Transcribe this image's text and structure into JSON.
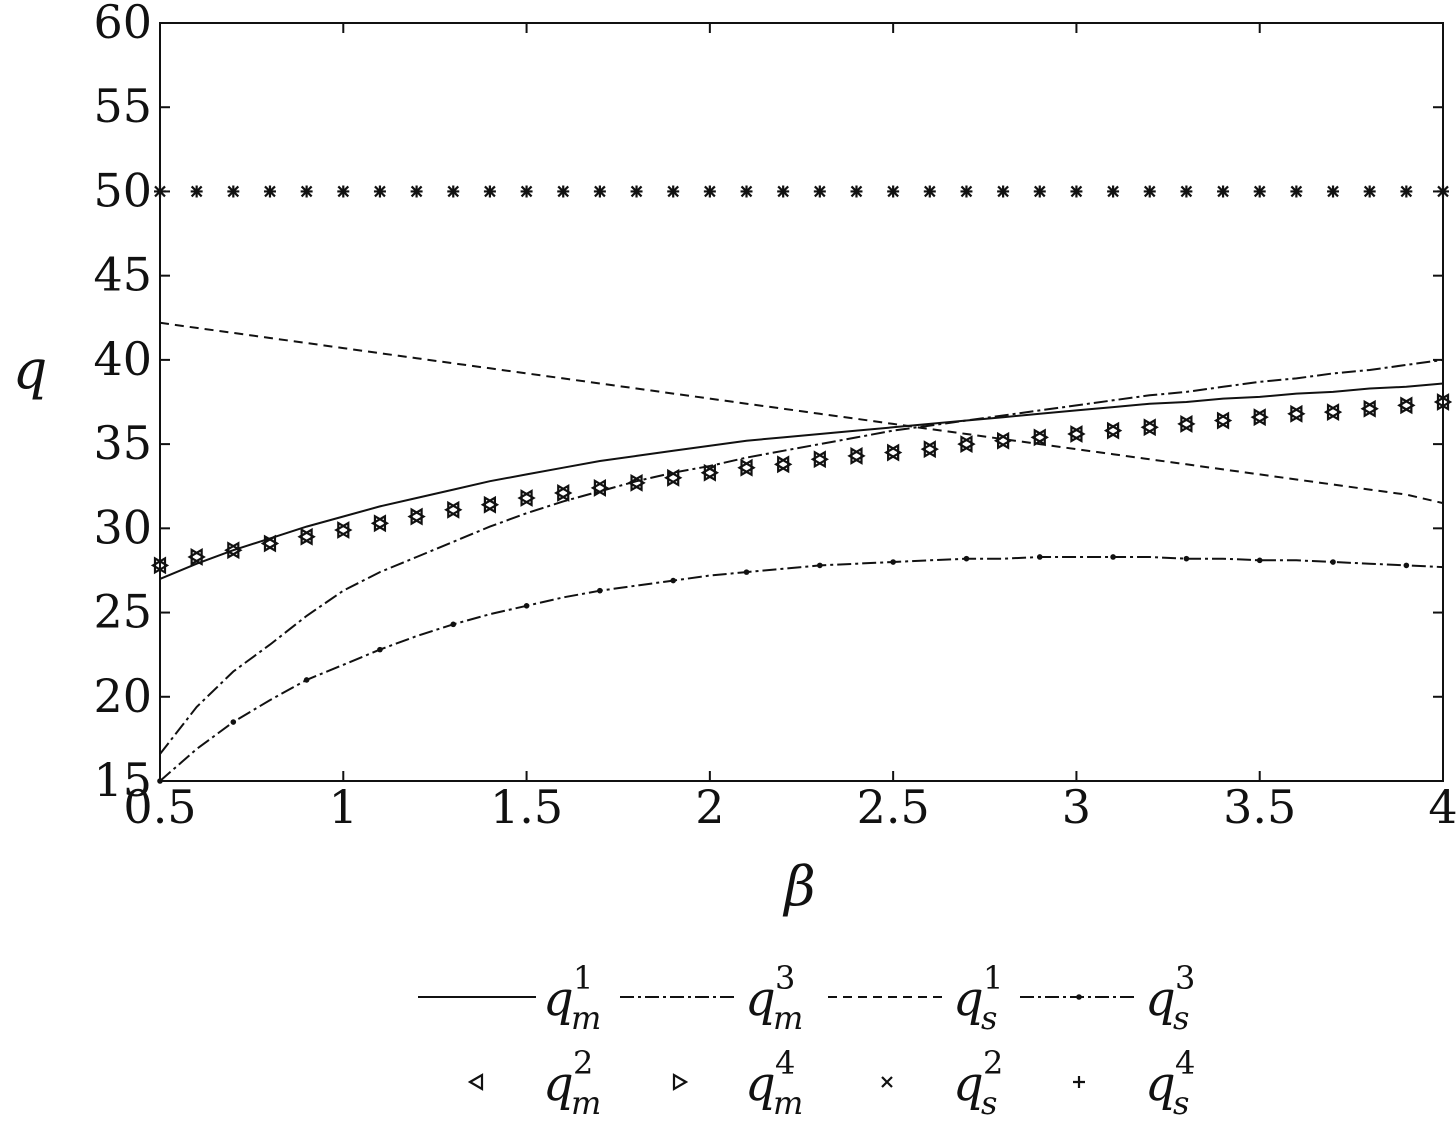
{
  "chart_data": {
    "type": "line",
    "xlabel": "β",
    "ylabel": "q",
    "xlim": [
      0.5,
      4
    ],
    "ylim": [
      15,
      60
    ],
    "xticks": [
      "0.5",
      "1",
      "1.5",
      "2",
      "2.5",
      "3",
      "3.5",
      "4"
    ],
    "yticks": [
      "15",
      "20",
      "25",
      "30",
      "35",
      "40",
      "45",
      "50",
      "55",
      "60"
    ],
    "grid": false,
    "legend_position": "bottom",
    "x": [
      0.5,
      0.6,
      0.7,
      0.8,
      0.9,
      1.0,
      1.1,
      1.2,
      1.3,
      1.4,
      1.5,
      1.6,
      1.7,
      1.8,
      1.9,
      2.0,
      2.1,
      2.2,
      2.3,
      2.4,
      2.5,
      2.6,
      2.7,
      2.8,
      2.9,
      3.0,
      3.1,
      3.2,
      3.3,
      3.4,
      3.5,
      3.6,
      3.7,
      3.8,
      3.9,
      4.0
    ],
    "series": [
      {
        "id": "qm1",
        "sym": "q",
        "sub": "m",
        "sup": "1",
        "style": "solid",
        "marker": "none",
        "values": [
          27.0,
          27.9,
          28.7,
          29.4,
          30.1,
          30.7,
          31.3,
          31.8,
          32.3,
          32.8,
          33.2,
          33.6,
          34.0,
          34.3,
          34.6,
          34.9,
          35.2,
          35.4,
          35.6,
          35.8,
          36.0,
          36.2,
          36.4,
          36.6,
          36.8,
          37.0,
          37.2,
          37.4,
          37.5,
          37.7,
          37.8,
          38.0,
          38.1,
          38.3,
          38.4,
          38.6
        ]
      },
      {
        "id": "qm3",
        "sym": "q",
        "sub": "m",
        "sup": "3",
        "style": "dashdot",
        "marker": "none",
        "values": [
          16.6,
          19.4,
          21.5,
          23.1,
          24.8,
          26.3,
          27.4,
          28.3,
          29.2,
          30.1,
          30.9,
          31.6,
          32.2,
          32.8,
          33.3,
          33.7,
          34.2,
          34.6,
          35.0,
          35.4,
          35.8,
          36.1,
          36.4,
          36.7,
          37.0,
          37.3,
          37.6,
          37.9,
          38.1,
          38.4,
          38.7,
          38.9,
          39.2,
          39.4,
          39.7,
          40.0
        ]
      },
      {
        "id": "qs1",
        "sym": "q",
        "sub": "s",
        "sup": "1",
        "style": "dashed",
        "marker": "none",
        "values": [
          42.2,
          41.9,
          41.6,
          41.3,
          41.0,
          40.7,
          40.4,
          40.1,
          39.8,
          39.5,
          39.2,
          38.9,
          38.6,
          38.3,
          38.0,
          37.7,
          37.4,
          37.1,
          36.8,
          36.5,
          36.2,
          35.9,
          35.6,
          35.3,
          35.0,
          34.7,
          34.4,
          34.1,
          33.8,
          33.5,
          33.2,
          32.9,
          32.6,
          32.3,
          32.0,
          31.5
        ]
      },
      {
        "id": "qs3",
        "sym": "q",
        "sub": "s",
        "sup": "3",
        "style": "dashdot",
        "marker": "dot",
        "values": [
          15.0,
          16.9,
          18.5,
          19.8,
          21.0,
          21.9,
          22.8,
          23.6,
          24.3,
          24.9,
          25.4,
          25.9,
          26.3,
          26.6,
          26.9,
          27.2,
          27.4,
          27.6,
          27.8,
          27.9,
          28.0,
          28.1,
          28.2,
          28.2,
          28.3,
          28.3,
          28.3,
          28.3,
          28.2,
          28.2,
          28.1,
          28.1,
          28.0,
          27.9,
          27.8,
          27.7
        ]
      },
      {
        "id": "qm2",
        "sym": "q",
        "sub": "m",
        "sup": "2",
        "style": "none",
        "marker": "triangle-left",
        "values": [
          27.8,
          28.3,
          28.7,
          29.1,
          29.5,
          29.9,
          30.3,
          30.7,
          31.1,
          31.4,
          31.8,
          32.1,
          32.4,
          32.7,
          33.0,
          33.3,
          33.6,
          33.8,
          34.1,
          34.3,
          34.5,
          34.7,
          35.0,
          35.2,
          35.4,
          35.6,
          35.8,
          36.0,
          36.2,
          36.4,
          36.6,
          36.8,
          36.9,
          37.1,
          37.3,
          37.5
        ]
      },
      {
        "id": "qm4",
        "sym": "q",
        "sub": "m",
        "sup": "4",
        "style": "none",
        "marker": "triangle-right",
        "values": [
          27.8,
          28.3,
          28.7,
          29.1,
          29.5,
          29.9,
          30.3,
          30.7,
          31.1,
          31.4,
          31.8,
          32.1,
          32.4,
          32.7,
          33.0,
          33.3,
          33.6,
          33.8,
          34.1,
          34.3,
          34.5,
          34.7,
          35.0,
          35.2,
          35.4,
          35.6,
          35.8,
          36.0,
          36.2,
          36.4,
          36.6,
          36.8,
          36.9,
          37.1,
          37.3,
          37.5
        ]
      },
      {
        "id": "qs2",
        "sym": "q",
        "sub": "s",
        "sup": "2",
        "style": "none",
        "marker": "x",
        "values": [
          50,
          50,
          50,
          50,
          50,
          50,
          50,
          50,
          50,
          50,
          50,
          50,
          50,
          50,
          50,
          50,
          50,
          50,
          50,
          50,
          50,
          50,
          50,
          50,
          50,
          50,
          50,
          50,
          50,
          50,
          50,
          50,
          50,
          50,
          50,
          50
        ]
      },
      {
        "id": "qs4",
        "sym": "q",
        "sub": "s",
        "sup": "4",
        "style": "none",
        "marker": "plus",
        "values": [
          50,
          50,
          50,
          50,
          50,
          50,
          50,
          50,
          50,
          50,
          50,
          50,
          50,
          50,
          50,
          50,
          50,
          50,
          50,
          50,
          50,
          50,
          50,
          50,
          50,
          50,
          50,
          50,
          50,
          50,
          50,
          50,
          50,
          50,
          50,
          50
        ]
      }
    ],
    "legend_rows": [
      [
        "qm1",
        "qm3",
        "qs1",
        "qs3"
      ],
      [
        "qm2",
        "qm4",
        "qs2",
        "qs4"
      ]
    ]
  }
}
